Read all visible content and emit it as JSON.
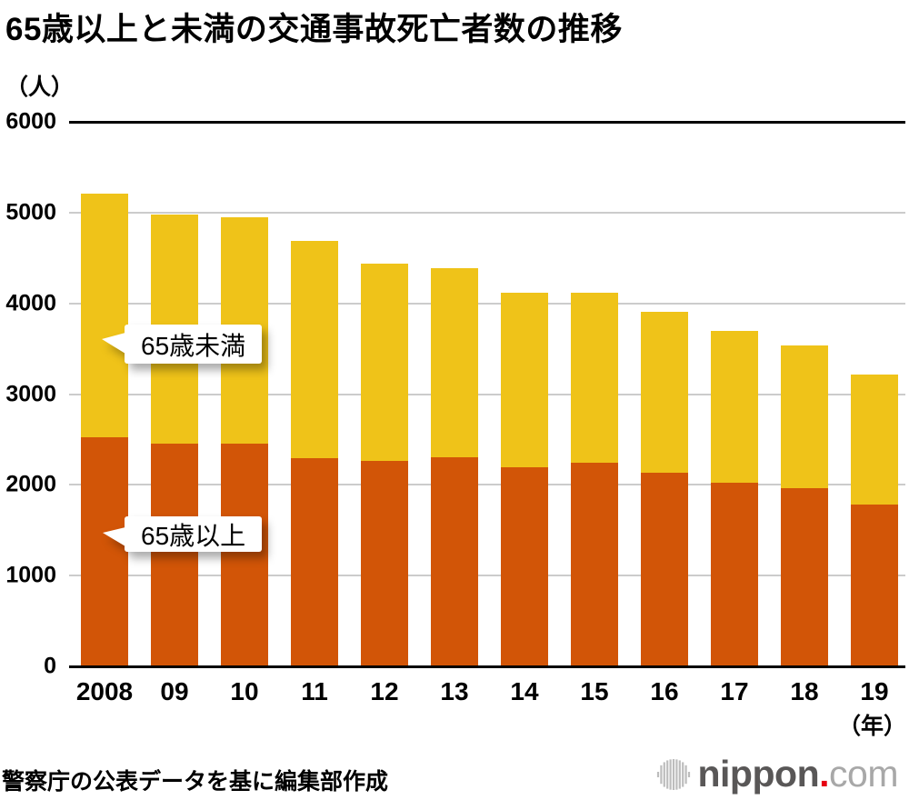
{
  "title": "65歳以上と未満の交通事故死亡者数の推移",
  "y_axis": {
    "unit_label": "（人）",
    "ticks": [
      "6000",
      "5000",
      "4000",
      "3000",
      "2000",
      "1000",
      "0"
    ],
    "max": 6000
  },
  "x_axis": {
    "unit_label": "（年）"
  },
  "chart_data": {
    "type": "bar",
    "stacked": true,
    "title": "65歳以上と未満の交通事故死亡者数の推移",
    "categories": [
      "2008",
      "09",
      "10",
      "11",
      "12",
      "13",
      "14",
      "15",
      "16",
      "17",
      "18",
      "19"
    ],
    "series": [
      {
        "name": "65歳以上",
        "color": "#d25507",
        "values": [
          2520,
          2452,
          2450,
          2291,
          2264,
          2303,
          2193,
          2247,
          2138,
          2020,
          1966,
          1782
        ]
      },
      {
        "name": "65歳未満",
        "color": "#efc319",
        "values": [
          2689,
          2527,
          2498,
          2400,
          2174,
          2085,
          1920,
          1870,
          1766,
          1674,
          1566,
          1433
        ]
      }
    ],
    "totals": [
      5209,
      4979,
      4948,
      4691,
      4438,
      4388,
      4113,
      4117,
      3904,
      3694,
      3532,
      3215
    ],
    "xlabel": "（年）",
    "ylabel": "（人）",
    "ylim": [
      0,
      6000
    ],
    "grid": true,
    "legend_position": "callout-bubbles-on-first-bar"
  },
  "callouts": {
    "under65": {
      "label": "65歳未満"
    },
    "over65": {
      "label": "65歳以上"
    }
  },
  "footer": {
    "source_note": "警察庁の公表データを基に編集部作成"
  },
  "logo": {
    "nippon": "nippon",
    "dot": ".",
    "com": "com"
  },
  "colors": {
    "bar_65plus": "#d25507",
    "bar_under65": "#efc319",
    "gridline": "#cccccc",
    "axis": "#000000",
    "logo_dark": "#595757",
    "logo_light": "#a8a8a8",
    "logo_dot": "#e60012"
  }
}
